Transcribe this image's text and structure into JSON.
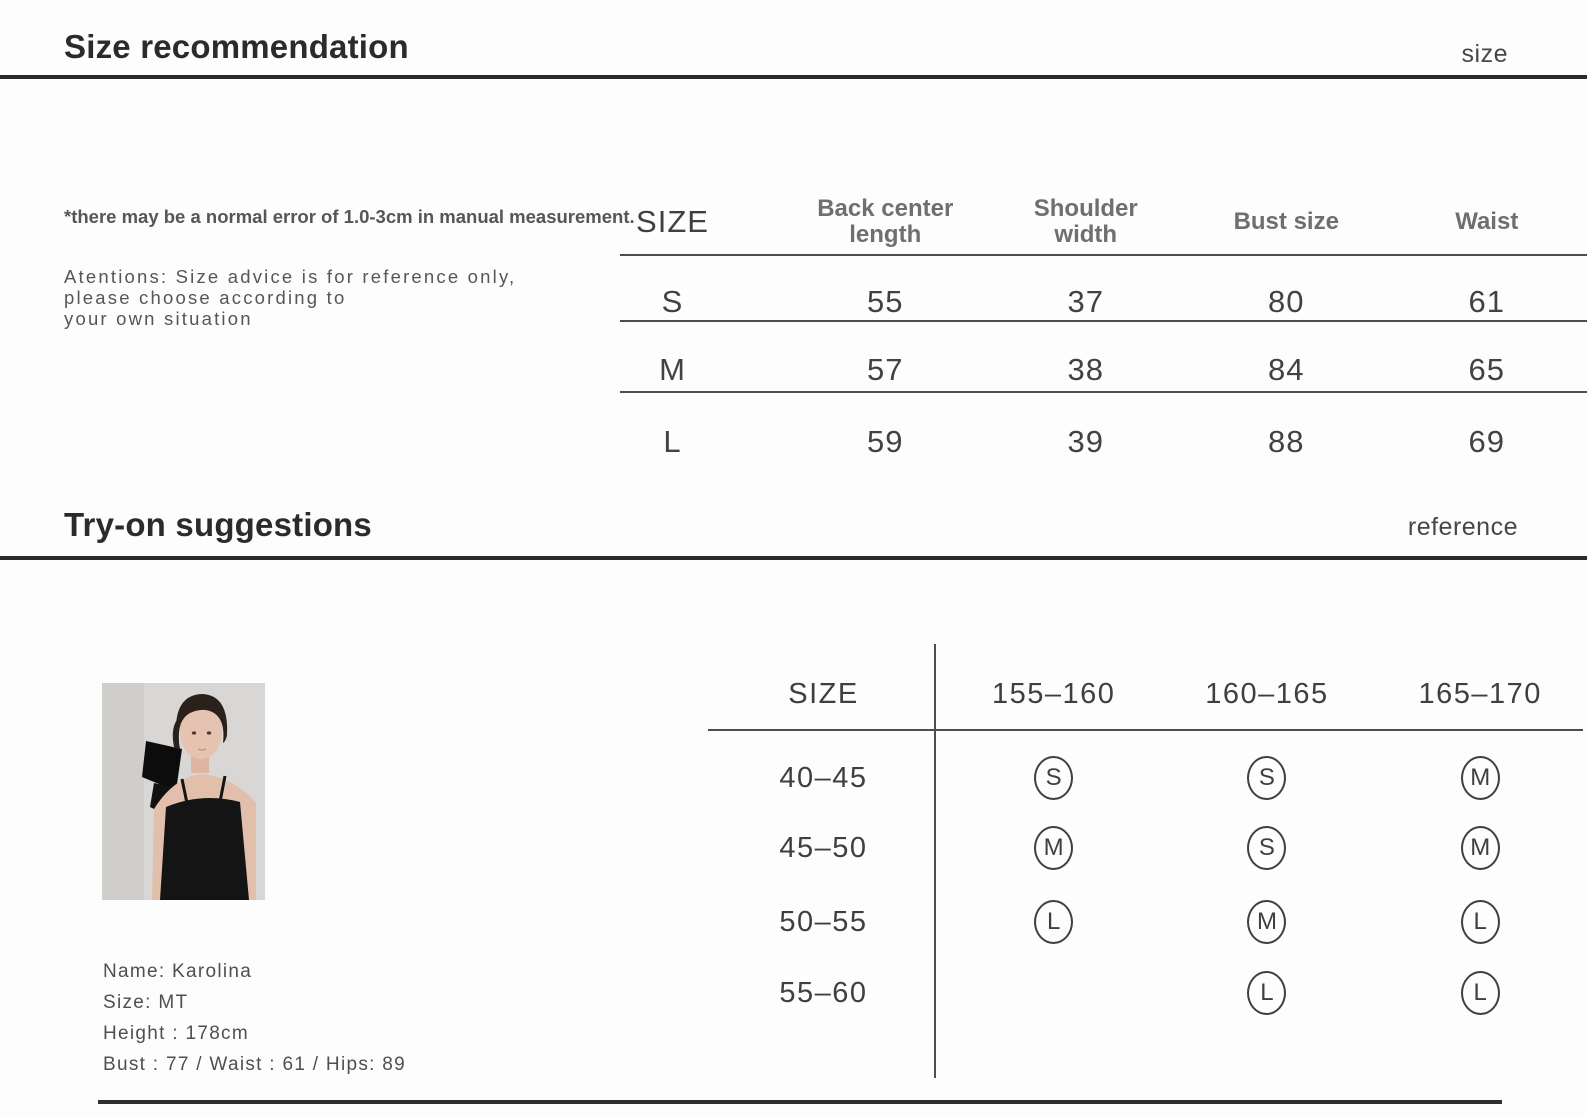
{
  "colors": {
    "heading": "#2b2b2b",
    "body_text": "#565656",
    "table_text": "#424242",
    "muted_header": "#6f6f6f",
    "rule_line": "#4d4d4d"
  },
  "section_size": {
    "title": "Size recommendation",
    "corner_label": "size"
  },
  "notes": {
    "measurement": "*there may be a normal error of 1.0-3cm in manual measurement.",
    "attention_lines": [
      "Atentions: Size advice is for reference only,",
      "please choose according to",
      "your own situation"
    ]
  },
  "size_table": {
    "columns": [
      {
        "lines": [
          "SIZE"
        ]
      },
      {
        "lines": [
          "Back center",
          "length"
        ]
      },
      {
        "lines": [
          "Shoulder",
          "width"
        ]
      },
      {
        "lines": [
          "Bust size"
        ]
      },
      {
        "lines": [
          "Waist"
        ]
      }
    ],
    "rows": [
      [
        "S",
        "55",
        "37",
        "80",
        "61"
      ],
      [
        "M",
        "57",
        "38",
        "84",
        "65"
      ],
      [
        "L",
        "59",
        "39",
        "88",
        "69"
      ]
    ]
  },
  "section_tryon": {
    "title": "Try-on suggestions",
    "corner_label": "reference"
  },
  "model": {
    "photo_alt": "model-wearing-black-camisole",
    "info_lines": [
      "Name: Karolina",
      "Size: MT",
      "Height : 178cm",
      "Bust : 77 / Waist : 61 / Hips: 89"
    ]
  },
  "tryon_table": {
    "header": [
      "SIZE",
      "155–160",
      "160–165",
      "165–170"
    ],
    "rows": [
      {
        "label": "40–45",
        "cells": [
          "S",
          "S",
          "M"
        ]
      },
      {
        "label": "45–50",
        "cells": [
          "M",
          "S",
          "M"
        ]
      },
      {
        "label": "50–55",
        "cells": [
          "L",
          "M",
          "L"
        ]
      },
      {
        "label": "55–60",
        "cells": [
          "",
          "L",
          "L"
        ]
      }
    ]
  }
}
